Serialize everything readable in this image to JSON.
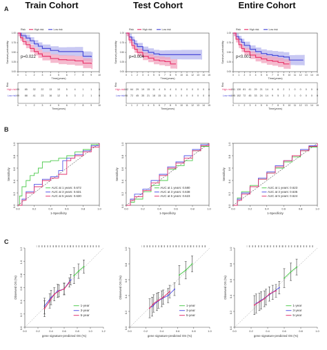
{
  "panel_labels": [
    "A",
    "B",
    "C"
  ],
  "columns": [
    "Train Cohort",
    "Test Cohort",
    "Entire Cohort"
  ],
  "colors": {
    "high": "#e8336b",
    "low": "#4b4bd8",
    "high_fill": "#f2a3bd",
    "low_fill": "#b7b7ef",
    "y1": "#4ecb4e",
    "y3": "#5353e6",
    "y5": "#e0336e"
  },
  "chart_data": [
    {
      "id": "km-train",
      "type": "line",
      "subtype": "kaplan-meier",
      "ylabel": "Survival probability",
      "xlabel": "Time(years)",
      "xlim": [
        0,
        10
      ],
      "ylim": [
        0,
        1
      ],
      "xticks": [
        0,
        1,
        2,
        3,
        4,
        5,
        6,
        7,
        8,
        9,
        10
      ],
      "yticks": [
        "0.00",
        "0.25",
        "0.50",
        "0.75",
        "1.00"
      ],
      "pvalue": "p=0.022",
      "legend": {
        "title": "Risk",
        "items": [
          "High risk",
          "Low risk"
        ]
      },
      "series": [
        {
          "name": "High risk",
          "x": [
            0,
            0.3,
            0.6,
            1,
            1.5,
            2,
            2.5,
            3,
            4,
            5,
            6,
            7,
            8,
            9
          ],
          "y": [
            1,
            0.88,
            0.78,
            0.7,
            0.6,
            0.52,
            0.46,
            0.4,
            0.34,
            0.31,
            0.3,
            0.28,
            0.22,
            0.2
          ]
        },
        {
          "name": "Low risk",
          "x": [
            0,
            0.4,
            1,
            1.5,
            2,
            2.5,
            3,
            4,
            5,
            6,
            7,
            8,
            9
          ],
          "y": [
            1,
            0.93,
            0.87,
            0.8,
            0.72,
            0.66,
            0.6,
            0.55,
            0.52,
            0.52,
            0.52,
            0.4,
            0.38
          ]
        }
      ],
      "risk_table": {
        "title": "Risk",
        "rows": [
          {
            "name": "High risk",
            "values": [
              "99",
              "85",
              "32",
              "22",
              "13",
              "10",
              "5",
              "4",
              "1",
              "1",
              "0"
            ]
          },
          {
            "name": "Low risk",
            "values": [
              "99",
              "88",
              "41",
              "23",
              "16",
              "12",
              "5",
              "3",
              "2",
              "1",
              "0"
            ]
          }
        ]
      }
    },
    {
      "id": "km-test",
      "type": "line",
      "subtype": "kaplan-meier",
      "ylabel": "Survival probability",
      "xlabel": "Time(years)",
      "xlim": [
        0,
        15
      ],
      "ylim": [
        0,
        1
      ],
      "xticks": [
        0,
        1,
        2,
        3,
        4,
        5,
        6,
        7,
        8,
        9,
        10,
        11,
        12,
        13,
        14,
        15
      ],
      "yticks": [
        "0.00",
        "0.25",
        "0.50",
        "0.75",
        "1.00"
      ],
      "pvalue": "p=0.004",
      "legend": {
        "title": "Risk",
        "items": [
          "High risk",
          "Low risk"
        ]
      },
      "series": [
        {
          "name": "High risk",
          "x": [
            0,
            0.5,
            1,
            1.5,
            2,
            3,
            4,
            5,
            6,
            7,
            8,
            9
          ],
          "y": [
            1,
            0.82,
            0.68,
            0.58,
            0.5,
            0.4,
            0.35,
            0.3,
            0.28,
            0.26,
            0.2,
            0.2
          ]
        },
        {
          "name": "Low risk",
          "x": [
            0,
            0.5,
            1,
            1.5,
            2,
            3,
            4,
            5,
            6,
            7,
            8,
            10,
            13.5
          ],
          "y": [
            1,
            0.9,
            0.82,
            0.72,
            0.65,
            0.55,
            0.5,
            0.46,
            0.44,
            0.44,
            0.44,
            0.44,
            0.44
          ]
        }
      ],
      "risk_table": {
        "title": "Risk",
        "rows": [
          {
            "name": "High risk",
            "values": [
              "102",
              "64",
              "29",
              "19",
              "15",
              "11",
              "4",
              "5",
              "4",
              "0",
              "0",
              "0",
              "0",
              "0",
              "0",
              "0"
            ]
          },
          {
            "name": "Low risk",
            "values": [
              "96",
              "72",
              "45",
              "35",
              "21",
              "18",
              "15",
              "11",
              "8",
              "1",
              "0",
              "0",
              "0",
              "0",
              "0",
              "0"
            ]
          }
        ]
      }
    },
    {
      "id": "km-entire",
      "type": "line",
      "subtype": "kaplan-meier",
      "ylabel": "Survival probability",
      "xlabel": "Time(years)",
      "xlim": [
        0,
        15
      ],
      "ylim": [
        0,
        1
      ],
      "xticks": [
        0,
        1,
        2,
        3,
        4,
        5,
        6,
        7,
        8,
        9,
        10,
        11,
        12,
        13,
        14,
        15
      ],
      "yticks": [
        "0.00",
        "0.25",
        "0.50",
        "0.75",
        "1.00"
      ],
      "pvalue": "p<0.001",
      "legend": {
        "title": "Risk",
        "items": [
          "High risk",
          "Low risk"
        ]
      },
      "series": [
        {
          "name": "High risk",
          "x": [
            0,
            0.5,
            1,
            1.5,
            2,
            3,
            4,
            5,
            6,
            7,
            8,
            9,
            10
          ],
          "y": [
            1,
            0.84,
            0.7,
            0.6,
            0.52,
            0.43,
            0.37,
            0.33,
            0.29,
            0.27,
            0.24,
            0.2,
            0.2
          ]
        },
        {
          "name": "Low risk",
          "x": [
            0,
            0.5,
            1,
            1.5,
            2,
            3,
            4,
            5,
            6,
            7,
            8,
            9,
            10,
            11,
            12.5
          ],
          "y": [
            1,
            0.91,
            0.84,
            0.76,
            0.68,
            0.58,
            0.52,
            0.47,
            0.44,
            0.42,
            0.4,
            0.38,
            0.3,
            0.3,
            0.3
          ]
        }
      ],
      "risk_table": {
        "title": "Risk",
        "rows": [
          {
            "name": "High risk",
            "values": [
              "201",
              "130",
              "81",
              "41",
              "29",
              "21",
              "14",
              "9",
              "6",
              "2",
              "1",
              "0",
              "0",
              "0",
              "0",
              "0"
            ]
          },
          {
            "name": "Low risk",
            "values": [
              "195",
              "152",
              "72",
              "45",
              "33",
              "24",
              "14",
              "9",
              "5",
              "3",
              "2",
              "1",
              "0",
              "0",
              "0",
              "0"
            ]
          }
        ]
      }
    },
    {
      "id": "roc-train",
      "type": "line",
      "subtype": "roc",
      "xlabel": "1-Specificity",
      "ylabel": "Sensitivity",
      "xlim": [
        0,
        1
      ],
      "ylim": [
        0,
        1
      ],
      "ticks": [
        "0.0",
        "0.2",
        "0.4",
        "0.6",
        "0.8",
        "1.0"
      ],
      "series": [
        {
          "name": "AUC at 1 years: 0.672",
          "x": [
            0,
            0.02,
            0.05,
            0.1,
            0.15,
            0.2,
            0.25,
            0.3,
            0.4,
            0.5,
            0.6,
            0.7,
            0.8,
            0.9,
            1
          ],
          "y": [
            0,
            0.15,
            0.3,
            0.4,
            0.48,
            0.52,
            0.6,
            0.7,
            0.72,
            0.76,
            0.8,
            0.86,
            0.9,
            0.98,
            1
          ]
        },
        {
          "name": "AUC at 3 years: 0.631",
          "x": [
            0,
            0.05,
            0.1,
            0.2,
            0.3,
            0.4,
            0.5,
            0.55,
            0.6,
            0.7,
            0.8,
            0.9,
            1
          ],
          "y": [
            0,
            0.1,
            0.22,
            0.34,
            0.42,
            0.46,
            0.56,
            0.72,
            0.76,
            0.82,
            0.88,
            0.96,
            1
          ]
        },
        {
          "name": "AUC at 5 years: 0.630",
          "x": [
            0,
            0.05,
            0.1,
            0.2,
            0.3,
            0.4,
            0.5,
            0.6,
            0.65,
            0.7,
            0.8,
            0.9,
            1
          ],
          "y": [
            0,
            0.08,
            0.2,
            0.3,
            0.4,
            0.44,
            0.5,
            0.72,
            0.76,
            0.8,
            0.86,
            0.94,
            1
          ]
        }
      ]
    },
    {
      "id": "roc-test",
      "type": "line",
      "subtype": "roc",
      "xlabel": "1-Specificity",
      "ylabel": "Sensitivity",
      "xlim": [
        0,
        1
      ],
      "ylim": [
        0,
        1
      ],
      "ticks": [
        "0.0",
        "0.2",
        "0.4",
        "0.6",
        "0.8",
        "1.0"
      ],
      "series": [
        {
          "name": "AUC at 1 years: 0.580",
          "x": [
            0,
            0.05,
            0.1,
            0.2,
            0.3,
            0.4,
            0.5,
            0.6,
            0.7,
            0.8,
            0.9,
            1
          ],
          "y": [
            0,
            0.05,
            0.1,
            0.22,
            0.32,
            0.4,
            0.58,
            0.64,
            0.72,
            0.88,
            0.95,
            1
          ]
        },
        {
          "name": "AUC at 3 years: 0.638",
          "x": [
            0,
            0.05,
            0.1,
            0.2,
            0.3,
            0.4,
            0.5,
            0.6,
            0.7,
            0.8,
            0.9,
            1
          ],
          "y": [
            0,
            0.1,
            0.18,
            0.26,
            0.4,
            0.5,
            0.62,
            0.7,
            0.8,
            0.9,
            0.98,
            1
          ]
        },
        {
          "name": "AUC at 5 years: 0.623",
          "x": [
            0,
            0.05,
            0.1,
            0.2,
            0.3,
            0.4,
            0.5,
            0.6,
            0.7,
            0.8,
            0.9,
            1
          ],
          "y": [
            0,
            0.08,
            0.14,
            0.24,
            0.36,
            0.48,
            0.6,
            0.68,
            0.76,
            0.88,
            0.96,
            1
          ]
        }
      ]
    },
    {
      "id": "roc-entire",
      "type": "line",
      "subtype": "roc",
      "xlabel": "1-Specificity",
      "ylabel": "Sensitivity",
      "xlim": [
        0,
        1
      ],
      "ylim": [
        0,
        1
      ],
      "ticks": [
        "0.0",
        "0.2",
        "0.4",
        "0.6",
        "0.8",
        "1.0"
      ],
      "series": [
        {
          "name": "AUC at 1 years: 0.623",
          "x": [
            0,
            0.05,
            0.1,
            0.2,
            0.3,
            0.4,
            0.5,
            0.6,
            0.7,
            0.8,
            0.9,
            1
          ],
          "y": [
            0,
            0.12,
            0.22,
            0.32,
            0.42,
            0.52,
            0.6,
            0.7,
            0.78,
            0.88,
            0.94,
            1
          ]
        },
        {
          "name": "AUC at 3 years: 0.635",
          "x": [
            0,
            0.05,
            0.1,
            0.2,
            0.3,
            0.4,
            0.5,
            0.6,
            0.7,
            0.8,
            0.9,
            1
          ],
          "y": [
            0,
            0.1,
            0.2,
            0.3,
            0.44,
            0.54,
            0.64,
            0.72,
            0.8,
            0.9,
            0.96,
            1
          ]
        },
        {
          "name": "AUC at 5 years: 0.624",
          "x": [
            0,
            0.05,
            0.1,
            0.2,
            0.3,
            0.4,
            0.5,
            0.6,
            0.7,
            0.8,
            0.9,
            1
          ],
          "y": [
            0,
            0.08,
            0.18,
            0.3,
            0.42,
            0.52,
            0.62,
            0.72,
            0.8,
            0.88,
            0.95,
            1
          ]
        }
      ]
    },
    {
      "id": "cal-train",
      "type": "line",
      "subtype": "calibration",
      "xlabel": "gene signature-predicted OS (%)",
      "ylabel": "Observed OS (%)",
      "xlim": [
        0,
        1.2
      ],
      "ylim": [
        0,
        1.2
      ],
      "ticks": [
        "0.0",
        "0.2",
        "0.4",
        "0.6",
        "0.8",
        "1.0",
        "1.2"
      ],
      "legend": [
        "1-year",
        "3-year",
        "5-year"
      ],
      "series": [
        {
          "name": "1-year",
          "x": [
            0.75,
            0.82,
            0.9
          ],
          "y": [
            0.78,
            0.85,
            0.92
          ]
        },
        {
          "name": "3-year",
          "x": [
            0.3,
            0.4,
            0.5,
            0.6,
            0.7
          ],
          "y": [
            0.32,
            0.45,
            0.55,
            0.58,
            0.72
          ]
        },
        {
          "name": "5-year",
          "x": [
            0.3,
            0.38,
            0.45,
            0.52,
            0.6,
            0.68
          ],
          "y": [
            0.28,
            0.4,
            0.5,
            0.55,
            0.58,
            0.68
          ]
        }
      ]
    },
    {
      "id": "cal-test",
      "type": "line",
      "subtype": "calibration",
      "xlabel": "gene signature-predicted OS (%)",
      "ylabel": "Observed OS (%)",
      "xlim": [
        0,
        1
      ],
      "ylim": [
        0,
        1
      ],
      "ticks": [
        "0.0",
        "0.2",
        "0.4",
        "0.6",
        "0.8",
        "1.0"
      ],
      "legend": [
        "1-year",
        "3-year",
        "5-year"
      ],
      "series": [
        {
          "name": "1-year",
          "x": [
            0.62,
            0.7,
            0.78
          ],
          "y": [
            0.66,
            0.72,
            0.8
          ]
        },
        {
          "name": "3-year",
          "x": [
            0.28,
            0.34,
            0.4,
            0.48,
            0.56
          ],
          "y": [
            0.26,
            0.32,
            0.36,
            0.4,
            0.48
          ]
        },
        {
          "name": "5-year",
          "x": [
            0.25,
            0.3,
            0.36,
            0.42,
            0.5
          ],
          "y": [
            0.24,
            0.3,
            0.34,
            0.38,
            0.45
          ]
        }
      ]
    },
    {
      "id": "cal-entire",
      "type": "line",
      "subtype": "calibration",
      "xlabel": "gene signature-predicted OS (%)",
      "ylabel": "Observed OS (%)",
      "xlim": [
        0,
        1
      ],
      "ylim": [
        0,
        1
      ],
      "ticks": [
        "0.0",
        "0.2",
        "0.4",
        "0.6",
        "0.8",
        "1.0"
      ],
      "legend": [
        "1-year",
        "3-year",
        "5-year"
      ],
      "series": [
        {
          "name": "1-year",
          "x": [
            0.6,
            0.68,
            0.75
          ],
          "y": [
            0.62,
            0.7,
            0.76
          ]
        },
        {
          "name": "3-year",
          "x": [
            0.26,
            0.32,
            0.38,
            0.46,
            0.54
          ],
          "y": [
            0.3,
            0.34,
            0.38,
            0.44,
            0.5
          ]
        },
        {
          "name": "5-year",
          "x": [
            0.24,
            0.3,
            0.36,
            0.42,
            0.5
          ],
          "y": [
            0.28,
            0.32,
            0.36,
            0.42,
            0.46
          ]
        }
      ]
    }
  ]
}
